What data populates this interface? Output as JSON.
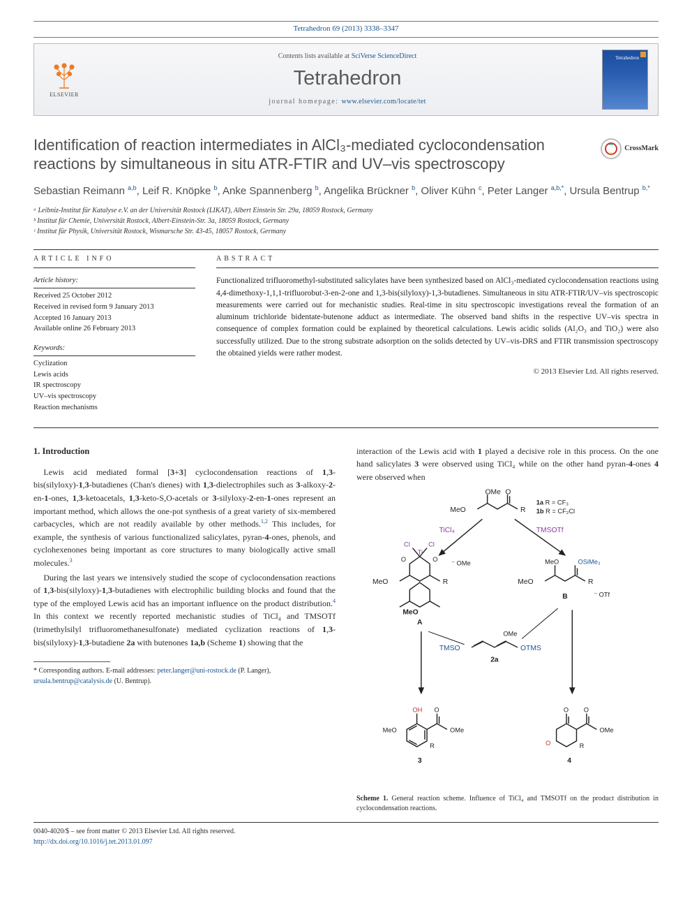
{
  "citation": "Tetrahedron 69 (2013) 3338–3347",
  "header": {
    "publisher_name": "ELSEVIER",
    "contents_prefix": "Contents lists available at ",
    "contents_link": "SciVerse ScienceDirect",
    "journal": "Tetrahedron",
    "homepage_prefix": "journal homepage: ",
    "homepage_url": "www.elsevier.com/locate/tet",
    "cover_label": "Tetrahedron"
  },
  "colors": {
    "link": "#1a5490",
    "title_gray": "#4f4f52",
    "cover_gradient_top": "#1a4da0",
    "cover_gradient_bottom": "#5585d0",
    "elsevier_orange": "#ed7b23",
    "scheme_blue": "#1a5490",
    "scheme_purple": "#8b3a9e"
  },
  "article": {
    "title": "Identification of reaction intermediates in AlCl₃-mediated cyclocondensation reactions by simultaneous in situ ATR-FTIR and UV–vis spectroscopy",
    "crossmark": "CrossMark",
    "authors_html": "Sebastian Reimann <sup>a,b</sup>, Leif R. Knöpke <sup>b</sup>, Anke Spannenberg <sup>b</sup>, Angelika Brückner <sup>b</sup>, Oliver Kühn <sup>c</sup>, Peter Langer <sup>a,b,*</sup>, Ursula Bentrup <sup>b,*</sup>",
    "affiliations": [
      "ᵃ Leibniz-Institut für Katalyse e.V. an der Universität Rostock (LIKAT), Albert Einstein Str. 29a, 18059 Rostock, Germany",
      "ᵇ Institut für Chemie, Universität Rostock, Albert-Einstein-Str. 3a, 18059 Rostock, Germany",
      "ᶜ Institut für Physik, Universität Rostock, Wismarsche Str. 43-45, 18057 Rostock, Germany"
    ]
  },
  "info": {
    "label": "ARTICLE INFO",
    "history_heading": "Article history:",
    "history": [
      "Received 25 October 2012",
      "Received in revised form 9 January 2013",
      "Accepted 16 January 2013",
      "Available online 26 February 2013"
    ],
    "keywords_heading": "Keywords:",
    "keywords": [
      "Cyclization",
      "Lewis acids",
      "IR spectroscopy",
      "UV–vis spectroscopy",
      "Reaction mechanisms"
    ]
  },
  "abstract": {
    "label": "ABSTRACT",
    "text": "Functionalized trifluoromethyl-substituted salicylates have been synthesized based on AlCl₃-mediated cyclocondensation reactions using 4,4-dimethoxy-1,1,1-trifluorobut-3-en-2-one and 1,3-bis(silyloxy)-1,3-butadienes. Simultaneous in situ ATR-FTIR/UV–vis spectroscopic measurements were carried out for mechanistic studies. Real-time in situ spectroscopic investigations reveal the formation of an aluminum trichloride bidentate-butenone adduct as intermediate. The observed band shifts in the respective UV–vis spectra in consequence of complex formation could be explained by theoretical calculations. Lewis acidic solids (Al₂O₃ and TiO₂) were also successfully utilized. Due to the strong substrate adsorption on the solids detected by UV–vis-DRS and FTIR transmission spectroscopy the obtained yields were rather modest.",
    "copyright": "© 2013 Elsevier Ltd. All rights reserved."
  },
  "body": {
    "section_heading": "1. Introduction",
    "para1": "Lewis acid mediated formal [3+3] cyclocondensation reactions of 1,3-bis(silyloxy)-1,3-butadienes (Chan's dienes) with 1,3-dielectrophiles such as 3-alkoxy-2-en-1-ones, 1,3-ketoacetals, 1,3-keto-S,O-acetals or 3-silyloxy-2-en-1-ones represent an important method, which allows the one-pot synthesis of a great variety of six-membered carbacycles, which are not readily available by other methods.¹,² This includes, for example, the synthesis of various functionalized salicylates, pyran-4-ones, phenols, and cyclohexenones being important as core structures to many biologically active small molecules.³",
    "para2": "During the last years we intensively studied the scope of cyclocondensation reactions of 1,3-bis(silyloxy)-1,3-butadienes with electrophilic building blocks and found that the type of the employed Lewis acid has an important influence on the product distribution.⁴ In this context we recently reported mechanistic studies of TiCl₄ and TMSOTf (trimethylsilyl trifluoromethanesulfonate) mediated cyclization reactions of 1,3-bis(silyloxy)-1,3-butadiene 2a with butenones 1a,b (Scheme 1) showing that the",
    "para3": "interaction of the Lewis acid with 1 played a decisive role in this process. On the one hand salicylates 3 were observed using TiCl₄ while on the other hand pyran-4-ones 4 were observed when"
  },
  "scheme": {
    "caption_lead": "Scheme 1.",
    "caption_text": "General reaction scheme. Influence of TiCl₄ and TMSOTf on the product distribution in cyclocondensation reactions.",
    "labels": {
      "top_left": "MeO",
      "top_mid": "O",
      "top_r": "R",
      "species_1": "1a R = CF₃\n1b R = CF₂Cl",
      "ticl4": "TiCl₄",
      "tmsotf": "TMSOTf",
      "tmso": "TMSO",
      "otms": "OTMS",
      "ome": "OMe",
      "species_2a": "2a",
      "species_A": "A",
      "species_B": "B",
      "species_3": "3",
      "species_4": "4",
      "oh": "OH",
      "cl": "Cl",
      "ti": "Ti",
      "osime3": "OSiMe₃",
      "otf": "OTf"
    },
    "style": {
      "line_color": "#222222",
      "line_width": 1.4,
      "label_color_blue": "#1a5490",
      "label_color_purple": "#8b3a9e",
      "label_color_red": "#b33",
      "font_size": 9
    }
  },
  "footnote": {
    "lead": "* Corresponding authors. E-mail addresses: ",
    "email1": "peter.langer@uni-rostock.de",
    "name1": " (P. Langer), ",
    "email2": "ursula.bentrup@catalysis.de",
    "name2": " (U. Bentrup)."
  },
  "footer": {
    "line1": "0040-4020/$ – see front matter © 2013 Elsevier Ltd. All rights reserved.",
    "doi_prefix": "http://dx.doi.org/",
    "doi": "10.1016/j.tet.2013.01.097"
  }
}
